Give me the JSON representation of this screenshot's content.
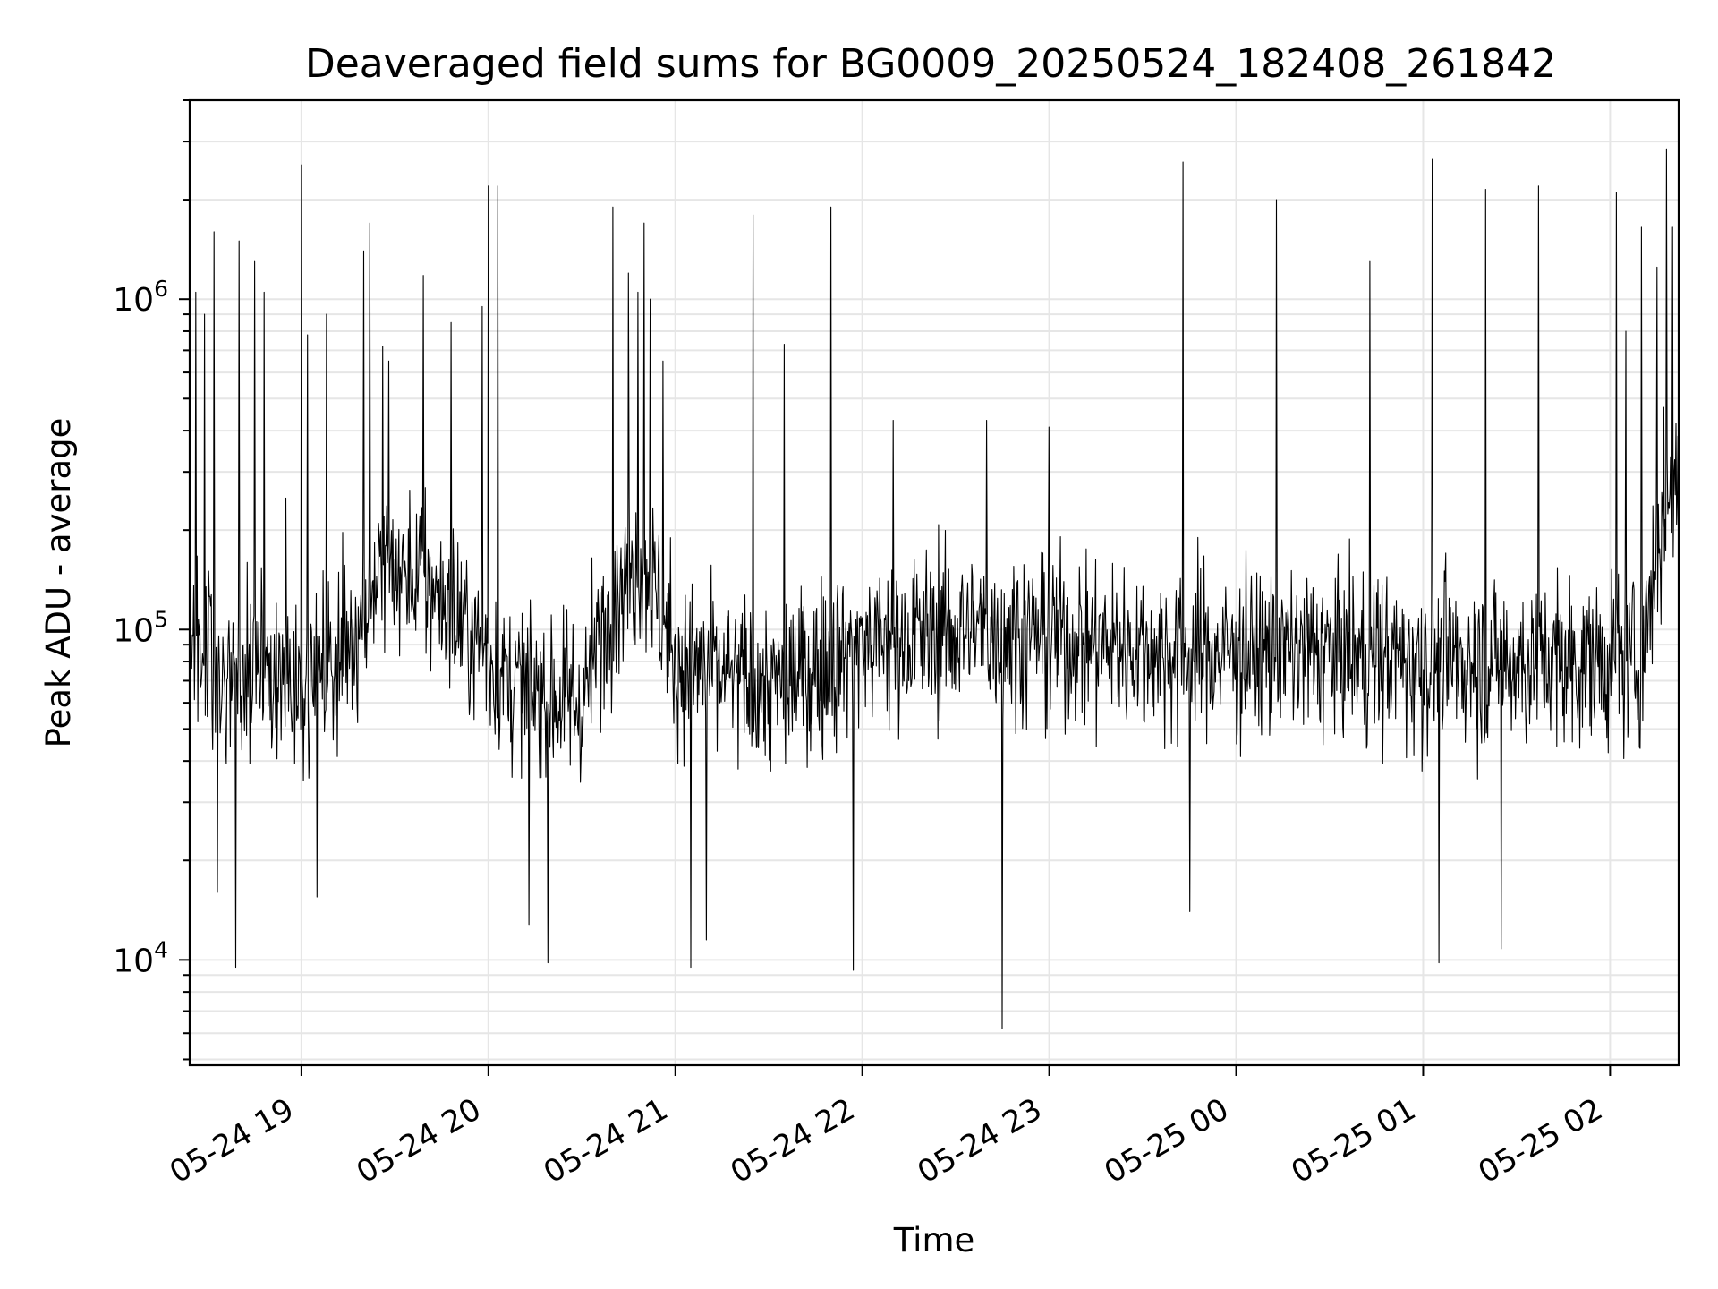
{
  "chart_data": {
    "type": "line",
    "title": "Deaveraged field sums for BG0009_20250524_182408_261842",
    "xlabel": "Time",
    "ylabel": "Peak ADU - average",
    "y_scale": "log",
    "ylim": [
      4800,
      4000000
    ],
    "xlim": [
      "2025-05-24 18:24:08",
      "2025-05-25 02:22:00"
    ],
    "grid": true,
    "series_color": "#000000",
    "x_ticks": [
      {
        "t": "2025-05-24 19:00",
        "label": "05-24 19"
      },
      {
        "t": "2025-05-24 20:00",
        "label": "05-24 20"
      },
      {
        "t": "2025-05-24 21:00",
        "label": "05-24 21"
      },
      {
        "t": "2025-05-24 22:00",
        "label": "05-24 22"
      },
      {
        "t": "2025-05-24 23:00",
        "label": "05-24 23"
      },
      {
        "t": "2025-05-25 00:00",
        "label": "05-25 00"
      },
      {
        "t": "2025-05-25 01:00",
        "label": "05-25 01"
      },
      {
        "t": "2025-05-25 02:00",
        "label": "05-25 02"
      }
    ],
    "y_ticks": [
      {
        "value": 10000,
        "base": "10",
        "exp": "4"
      },
      {
        "value": 100000,
        "base": "10",
        "exp": "5"
      },
      {
        "value": 1000000,
        "base": "10",
        "exp": "6"
      }
    ],
    "series": [
      {
        "baseline": [
          [
            "2025-05-24 18:24",
            110000
          ],
          [
            "2025-05-24 18:35",
            75000
          ],
          [
            "2025-05-24 18:50",
            70000
          ],
          [
            "2025-05-24 19:05",
            70000
          ],
          [
            "2025-05-24 19:15",
            90000
          ],
          [
            "2025-05-24 19:25",
            150000
          ],
          [
            "2025-05-24 19:40",
            140000
          ],
          [
            "2025-05-24 19:55",
            95000
          ],
          [
            "2025-05-24 20:10",
            65000
          ],
          [
            "2025-05-24 20:30",
            60000
          ],
          [
            "2025-05-24 20:40",
            130000
          ],
          [
            "2025-05-24 20:50",
            160000
          ],
          [
            "2025-05-24 21:00",
            80000
          ],
          [
            "2025-05-24 21:30",
            65000
          ],
          [
            "2025-05-24 22:00",
            90000
          ],
          [
            "2025-05-24 22:30",
            100000
          ],
          [
            "2025-05-24 23:00",
            95000
          ],
          [
            "2025-05-24 23:40",
            85000
          ],
          [
            "2025-05-25 00:30",
            85000
          ],
          [
            "2025-05-25 01:00",
            80000
          ],
          [
            "2025-05-25 01:30",
            80000
          ],
          [
            "2025-05-25 02:10",
            80000
          ],
          [
            "2025-05-25 02:16",
            200000
          ],
          [
            "2025-05-25 02:22",
            300000
          ]
        ],
        "spikes": [
          [
            "2025-05-24 18:26",
            1050000
          ],
          [
            "2025-05-24 18:29",
            900000
          ],
          [
            "2025-05-24 18:32",
            1600000
          ],
          [
            "2025-05-24 18:40",
            1500000
          ],
          [
            "2025-05-24 18:45",
            1300000
          ],
          [
            "2025-05-24 18:48",
            1050000
          ],
          [
            "2025-05-24 18:55",
            250000
          ],
          [
            "2025-05-24 19:00",
            2550000
          ],
          [
            "2025-05-24 19:02",
            780000
          ],
          [
            "2025-05-24 19:08",
            900000
          ],
          [
            "2025-05-24 19:20",
            1400000
          ],
          [
            "2025-05-24 19:22",
            1700000
          ],
          [
            "2025-05-24 19:26",
            720000
          ],
          [
            "2025-05-24 19:28",
            650000
          ],
          [
            "2025-05-24 19:39",
            1180000
          ],
          [
            "2025-05-24 19:48",
            850000
          ],
          [
            "2025-05-24 19:58",
            950000
          ],
          [
            "2025-05-24 20:00",
            2200000
          ],
          [
            "2025-05-24 20:03",
            2200000
          ],
          [
            "2025-05-24 20:40",
            1900000
          ],
          [
            "2025-05-24 20:45",
            1200000
          ],
          [
            "2025-05-24 20:48",
            1050000
          ],
          [
            "2025-05-24 20:50",
            1700000
          ],
          [
            "2025-05-24 20:52",
            1000000
          ],
          [
            "2025-05-24 20:56",
            650000
          ],
          [
            "2025-05-24 21:25",
            1800000
          ],
          [
            "2025-05-24 21:35",
            730000
          ],
          [
            "2025-05-24 21:50",
            1900000
          ],
          [
            "2025-05-24 22:10",
            430000
          ],
          [
            "2025-05-24 22:40",
            430000
          ],
          [
            "2025-05-24 23:00",
            410000
          ],
          [
            "2025-05-24 23:43",
            2600000
          ],
          [
            "2025-05-25 00:13",
            2000000
          ],
          [
            "2025-05-25 00:43",
            1300000
          ],
          [
            "2025-05-25 01:03",
            2650000
          ],
          [
            "2025-05-25 01:20",
            2150000
          ],
          [
            "2025-05-25 01:37",
            2200000
          ],
          [
            "2025-05-25 02:02",
            2100000
          ],
          [
            "2025-05-25 02:05",
            800000
          ],
          [
            "2025-05-25 02:10",
            1650000
          ],
          [
            "2025-05-25 02:15",
            1250000
          ],
          [
            "2025-05-25 02:18",
            2850000
          ],
          [
            "2025-05-25 02:20",
            1650000
          ]
        ],
        "dips": [
          [
            "2025-05-24 18:39",
            9500
          ],
          [
            "2025-05-24 20:13",
            12800
          ],
          [
            "2025-05-24 20:19",
            9800
          ],
          [
            "2025-05-24 21:05",
            9500
          ],
          [
            "2025-05-24 21:10",
            11500
          ],
          [
            "2025-05-24 21:57",
            9300
          ],
          [
            "2025-05-24 22:45",
            6200
          ],
          [
            "2025-05-24 23:45",
            14000
          ],
          [
            "2025-05-25 01:05",
            9800
          ],
          [
            "2025-05-25 01:25",
            10800
          ],
          [
            "2025-05-24 19:05",
            15500
          ],
          [
            "2025-05-24 18:33",
            16000
          ]
        ]
      }
    ]
  }
}
